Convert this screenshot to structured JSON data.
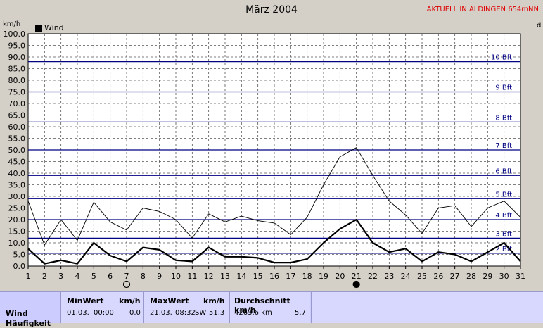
{
  "chart_data": {
    "type": "line",
    "title": "März 2004",
    "ylabel": "km/h",
    "ylabel_right": "d",
    "location": "AKTUELL IN ALDINGEN 654mNN",
    "x": [
      1,
      2,
      3,
      4,
      5,
      6,
      7,
      8,
      9,
      10,
      11,
      12,
      13,
      14,
      15,
      16,
      17,
      18,
      19,
      20,
      21,
      22,
      23,
      24,
      25,
      26,
      27,
      28,
      29,
      30,
      31
    ],
    "xlim": [
      1,
      31
    ],
    "ylim": [
      0,
      100
    ],
    "yticks": [
      "0.0",
      "5.0",
      "10.0",
      "15.0",
      "20.0",
      "25.0",
      "30.0",
      "35.0",
      "40.0",
      "45.0",
      "50.0",
      "55.0",
      "60.0",
      "65.0",
      "70.0",
      "75.0",
      "80.0",
      "85.0",
      "90.0",
      "95.0",
      "100.0"
    ],
    "grid": true,
    "legend_position": "top-left",
    "series": [
      {
        "name": "Wind",
        "style": "bold",
        "values": [
          7.5,
          1,
          2.5,
          1,
          10,
          4.5,
          2,
          8,
          7,
          2.5,
          2,
          8,
          4,
          4,
          3.5,
          1.5,
          1.5,
          3,
          10,
          16,
          20,
          10,
          6,
          7.5,
          2,
          6,
          5,
          2,
          6,
          10,
          2
        ]
      },
      {
        "style": "thin",
        "values": [
          28,
          9,
          20,
          11,
          27.5,
          19,
          15.5,
          25,
          23.5,
          20,
          12,
          22.5,
          19,
          21.5,
          19.5,
          18.5,
          13.5,
          21,
          35,
          47,
          51,
          39,
          28,
          22,
          14,
          25,
          26,
          17,
          25,
          28,
          21
        ]
      }
    ],
    "beaufort": [
      {
        "label": "2 Bft",
        "value": 5.5
      },
      {
        "label": "3 Bft",
        "value": 12
      },
      {
        "label": "4 Bft",
        "value": 20
      },
      {
        "label": "5 Bft",
        "value": 29
      },
      {
        "label": "6 Bft",
        "value": 39
      },
      {
        "label": "7 Bft",
        "value": 50
      },
      {
        "label": "8 Bft",
        "value": 62
      },
      {
        "label": "9 Bft",
        "value": 75
      },
      {
        "label": "10 Bft",
        "value": 88
      }
    ],
    "moon_markers": [
      {
        "day": 7,
        "phase": "full"
      },
      {
        "day": 21,
        "phase": "new"
      }
    ],
    "colors": {
      "grid": "#555555",
      "beaufort": "#000080",
      "plot_bg": "#ffffff",
      "series": "#000000"
    }
  },
  "stats": {
    "row_label": "Wind",
    "row_label2": "Häufigkeit",
    "min_header": "MinWert",
    "min_unit": "km/h",
    "min_date": "01.03.",
    "min_time": "00:00",
    "min_value": "0.0",
    "max_header": "MaxWert",
    "max_unit": "km/h",
    "max_date": "21.03.",
    "max_time": "08:32",
    "max_dir": "SW",
    "max_value": "51.3",
    "avg_header": "Durchschnitt km/h",
    "avg_distance": "4263.6 km",
    "avg_value": "5.7"
  }
}
